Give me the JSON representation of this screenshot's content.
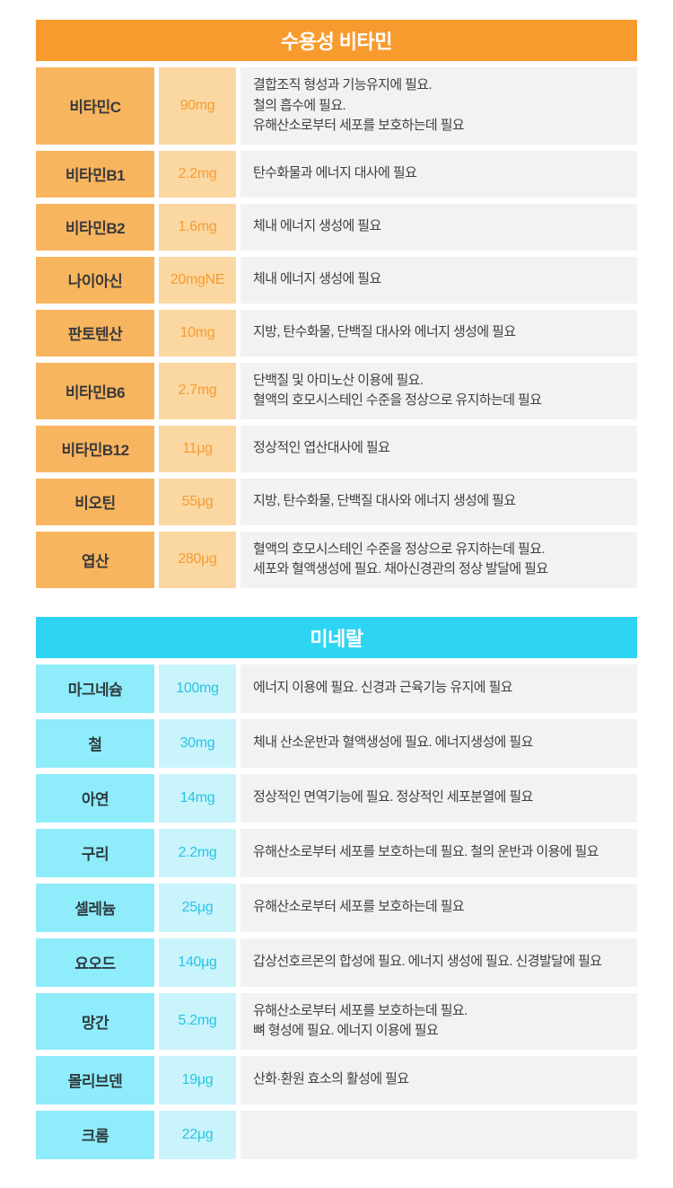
{
  "page": {
    "background": "#ffffff"
  },
  "tables": [
    {
      "title": "수용성 비타민",
      "theme": {
        "header_bg": "#f89b2e",
        "header_text": "#ffffff",
        "name_bg": "#f8b55f",
        "name_text": "#3a3a3a",
        "amount_bg": "#fbd7a1",
        "amount_text": "#f59c33",
        "desc_bg": "#f2f2f2",
        "desc_text": "#3f3f3f"
      },
      "rows": [
        {
          "name": "비타민C",
          "amount": "90mg",
          "desc": "결합조직 형성과 기능유지에 필요.\n철의 흡수에 필요.\n유해산소로부터 세포를 보호하는데 필요"
        },
        {
          "name": "비타민B1",
          "amount": "2.2mg",
          "desc": "탄수화물과 에너지 대사에 필요"
        },
        {
          "name": "비타민B2",
          "amount": "1.6mg",
          "desc": "체내 에너지 생성에 필요"
        },
        {
          "name": "나이아신",
          "amount": "20mgNE",
          "desc": "체내 에너지 생성에 필요"
        },
        {
          "name": "판토텐산",
          "amount": "10mg",
          "desc": "지방, 탄수화물, 단백질 대사와 에너지 생성에 필요"
        },
        {
          "name": "비타민B6",
          "amount": "2.7mg",
          "desc": "단백질 및 아미노산 이용에 필요.\n혈액의 호모시스테인 수준을 정상으로 유지하는데 필요"
        },
        {
          "name": "비타민B12",
          "amount": "11μg",
          "desc": "정상적인 엽산대사에 필요"
        },
        {
          "name": "비오틴",
          "amount": "55μg",
          "desc": "지방, 탄수화물, 단백질 대사와 에너지 생성에 필요"
        },
        {
          "name": "엽산",
          "amount": "280μg",
          "desc": "혈액의 호모시스테인 수준을 정상으로 유지하는데 필요.\n세포와 혈액생성에 필요. 채아신경관의 정상 발달에 필요"
        }
      ]
    },
    {
      "title": "미네랄",
      "theme": {
        "header_bg": "#2ed5f3",
        "header_text": "#ffffff",
        "name_bg": "#8fecfb",
        "name_text": "#2f3b40",
        "amount_bg": "#c9f4fc",
        "amount_text": "#29c3e3",
        "desc_bg": "#f2f2f2",
        "desc_text": "#3f3f3f"
      },
      "rows": [
        {
          "name": "마그네슘",
          "amount": "100mg",
          "desc": "에너지 이용에 필요. 신경과 근육기능 유지에 필요"
        },
        {
          "name": "철",
          "amount": "30mg",
          "desc": "체내 산소운반과 혈액생성에 필요. 에너지생성에 필요"
        },
        {
          "name": "아연",
          "amount": "14mg",
          "desc": "정상적인 면역기능에 필요. 정상적인 세포분열에 필요"
        },
        {
          "name": "구리",
          "amount": "2.2mg",
          "desc": "유해산소로부터 세포를 보호하는데 필요. 철의 운반과 이용에 필요"
        },
        {
          "name": "셀레늄",
          "amount": "25μg",
          "desc": "유해산소로부터 세포를 보호하는데 필요"
        },
        {
          "name": "요오드",
          "amount": "140μg",
          "desc": "갑상선호르몬의 합성에 필요. 에너지 생성에 필요. 신경발달에 필요"
        },
        {
          "name": "망간",
          "amount": "5.2mg",
          "desc": "유해산소로부터 세포를 보호하는데 필요.\n뼈 형성에 필요. 에너지 이용에 필요"
        },
        {
          "name": "몰리브덴",
          "amount": "19μg",
          "desc": "산화·환원 효소의 활성에 필요"
        },
        {
          "name": "크롬",
          "amount": "22μg",
          "desc": ""
        }
      ]
    }
  ]
}
